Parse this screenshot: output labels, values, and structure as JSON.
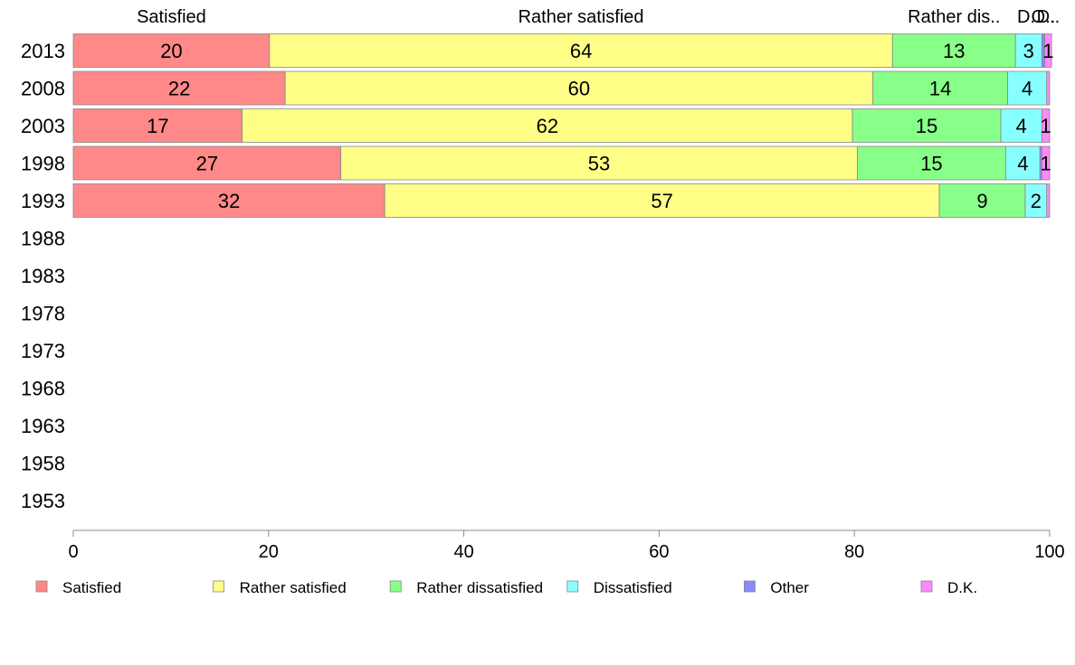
{
  "chart_data": {
    "type": "bar",
    "orientation": "horizontal",
    "stacked": true,
    "categories": [
      "2013",
      "2008",
      "2003",
      "1998",
      "1993",
      "1988",
      "1983",
      "1978",
      "1973",
      "1968",
      "1963",
      "1958",
      "1953"
    ],
    "series": [
      {
        "name": "Satisfied",
        "color": "#ff8888",
        "values": [
          20.1,
          21.7,
          17.3,
          27.4,
          31.9,
          null,
          null,
          null,
          null,
          null,
          null,
          null,
          null
        ],
        "labels": [
          "20",
          "22",
          "17",
          "27",
          "32",
          "",
          "",
          "",
          "",
          "",
          "",
          "",
          ""
        ]
      },
      {
        "name": "Rather satisfied",
        "color": "#ffff88",
        "values": [
          63.8,
          60.2,
          62.5,
          52.9,
          56.8,
          null,
          null,
          null,
          null,
          null,
          null,
          null,
          null
        ],
        "labels": [
          "64",
          "60",
          "62",
          "53",
          "57",
          "",
          "",
          "",
          "",
          "",
          "",
          "",
          ""
        ]
      },
      {
        "name": "Rather dissatisfied",
        "color": "#88ff88",
        "values": [
          12.6,
          13.8,
          15.2,
          15.2,
          8.8,
          null,
          null,
          null,
          null,
          null,
          null,
          null,
          null
        ],
        "labels": [
          "13",
          "14",
          "15",
          "15",
          "9",
          "",
          "",
          "",
          "",
          "",
          "",
          "",
          ""
        ]
      },
      {
        "name": "Dissatisfied",
        "color": "#88ffff",
        "values": [
          2.7,
          4.0,
          4.2,
          3.5,
          2.2,
          null,
          null,
          null,
          null,
          null,
          null,
          null,
          null
        ],
        "labels": [
          "3",
          "4",
          "4",
          "4",
          "2",
          "",
          "",
          "",
          "",
          "",
          "",
          "",
          ""
        ]
      },
      {
        "name": "Other",
        "color": "#8888ff",
        "values": [
          0.3,
          0.0,
          0.0,
          0.2,
          0.0,
          null,
          null,
          null,
          null,
          null,
          null,
          null,
          null
        ],
        "labels": [
          "",
          "",
          "",
          "",
          "",
          "",
          "",
          "",
          "",
          "",
          "",
          "",
          ""
        ]
      },
      {
        "name": "D.K.",
        "color": "#ff88ff",
        "values": [
          0.7,
          0.3,
          0.8,
          0.8,
          0.3,
          null,
          null,
          null,
          null,
          null,
          null,
          null,
          null
        ],
        "labels": [
          "1",
          "",
          "1",
          "1",
          "",
          "",
          "",
          "",
          "",
          "",
          "",
          "",
          ""
        ]
      }
    ],
    "top_labels": [
      "Satisfied",
      "Rather satisfied",
      "Rather dis..",
      "D..",
      "O..",
      "D.."
    ],
    "xticks": [
      0,
      20,
      40,
      60,
      80,
      100
    ],
    "xlim": [
      0,
      100
    ],
    "legend": [
      "Satisfied",
      "Rather satisfied",
      "Rather dissatisfied",
      "Dissatisfied",
      "Other",
      "D.K."
    ],
    "legend_position": "bottom",
    "grid": false
  }
}
